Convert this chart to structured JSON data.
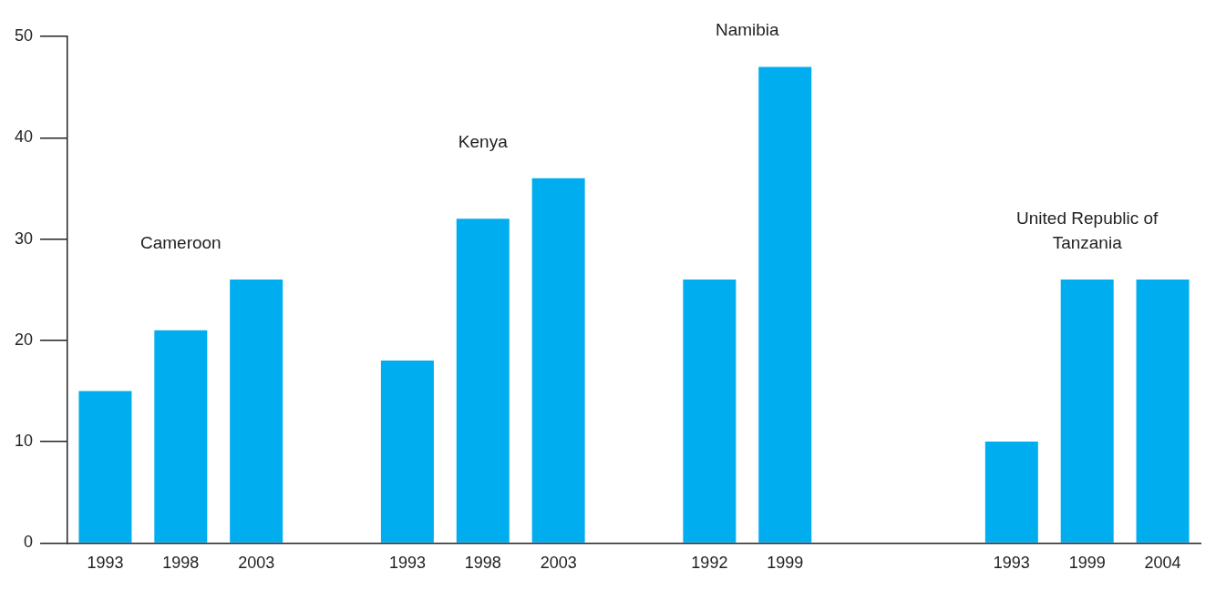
{
  "chart_data": {
    "type": "bar",
    "categories": [
      "1993",
      "1998",
      "2003",
      null,
      "1993",
      "1998",
      "2003",
      null,
      "1992",
      "1999",
      null,
      null,
      "1993",
      "1999",
      "2004"
    ],
    "values": [
      15,
      21,
      26,
      null,
      18,
      32,
      36,
      null,
      26,
      47,
      null,
      null,
      10,
      26,
      26
    ],
    "color": "#00adef",
    "ylim": [
      0,
      50
    ],
    "yticks": [
      0,
      10,
      20,
      30,
      40,
      50
    ],
    "annotations": [
      "Cameroon",
      "Kenya",
      "Namibia",
      "United Republic of Tanzania"
    ]
  }
}
